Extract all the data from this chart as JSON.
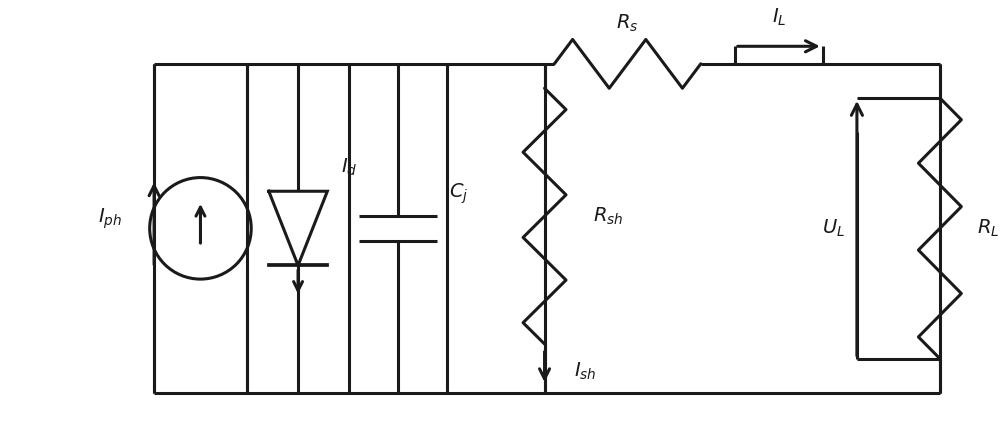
{
  "fig_width": 10.0,
  "fig_height": 4.34,
  "dpi": 100,
  "bg_color": "#ffffff",
  "line_color": "#1a1a1a",
  "line_width": 2.2,
  "labels": {
    "Iph": "$I_{ph}$",
    "Id": "$I_d$",
    "Cj": "$C_j$",
    "Rs": "$R_s$",
    "Rsh": "$R_{sh}$",
    "RL": "$R_L$",
    "IL": "$I_L$",
    "Ish": "$I_{sh}$",
    "UL": "$U_L$"
  }
}
